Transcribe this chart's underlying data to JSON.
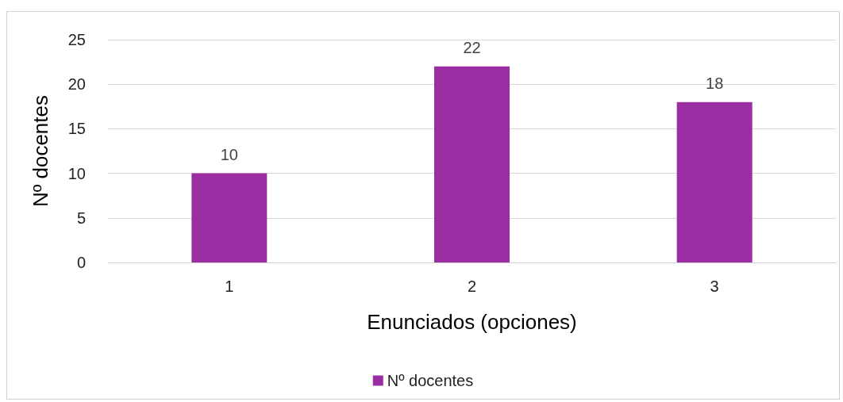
{
  "chart_data": {
    "type": "bar",
    "xlabel": "Enunciados (opciones)",
    "ylabel": "Nº docentes",
    "categories": [
      "1",
      "2",
      "3"
    ],
    "series": [
      {
        "name": "Nº docentes",
        "color": "#9b2ea3",
        "values": [
          10,
          22,
          18
        ]
      }
    ],
    "ylim": [
      0,
      25
    ],
    "yticks": [
      0,
      5,
      10,
      15,
      20,
      25
    ],
    "grid": "y",
    "legend": "bottom",
    "data_labels": true
  }
}
